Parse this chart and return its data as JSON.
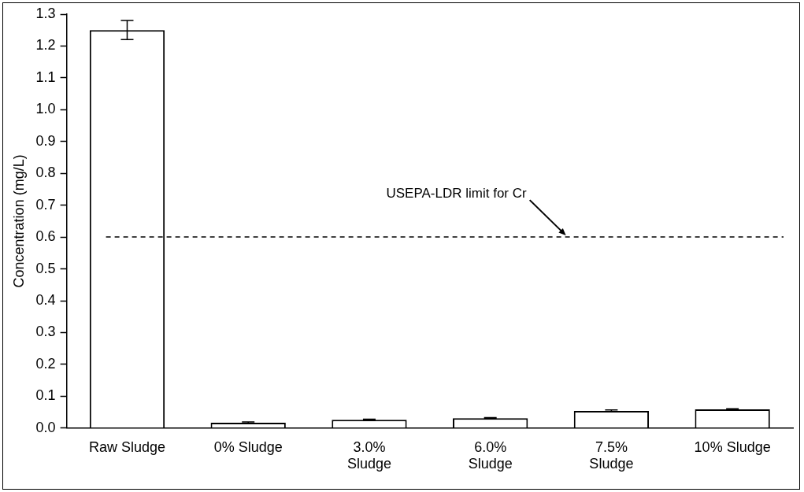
{
  "chart_data": {
    "type": "bar",
    "ylabel": "Concentration (mg/L)",
    "categories": [
      "Raw Sludge",
      "0% Sludge",
      "3.0%\nSludge",
      "6.0%\nSludge",
      "7.5%\nSludge",
      "10% Sludge"
    ],
    "values": [
      1.25,
      0.017,
      0.026,
      0.031,
      0.054,
      0.059
    ],
    "errors": [
      0.03,
      0.002,
      0.002,
      0.002,
      0.003,
      0.002
    ],
    "color": "#ffffff",
    "ylim": [
      0,
      1.3
    ],
    "yticks": [
      "0.0",
      0.1,
      0.2,
      0.3,
      0.4,
      0.5,
      0.6,
      0.7,
      0.8,
      0.9,
      "1.0",
      1.1,
      1.2,
      1.3
    ],
    "ref_lines": [
      {
        "axis": "y",
        "value": 0.6,
        "label": "USEPA-LDR limit for Cr",
        "line_style": "dashed",
        "color": "#000000"
      }
    ],
    "grid": false,
    "legend": false
  }
}
